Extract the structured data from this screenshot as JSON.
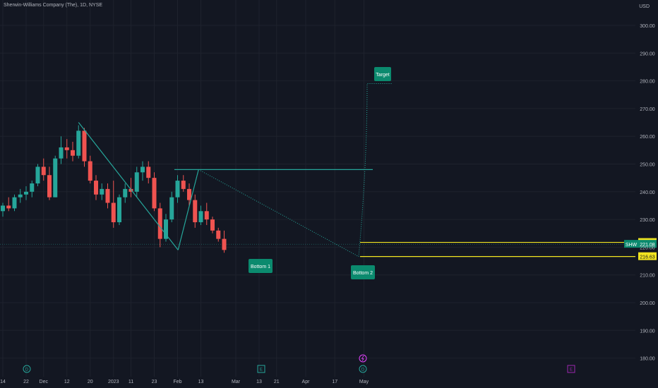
{
  "header": {
    "title": "Sherwin-Williams Company (The), 1D, NYSE",
    "currency": "USD"
  },
  "colors": {
    "background": "#131722",
    "up": "#26a69a",
    "down": "#ef5350",
    "axis_text": "#b2b5be",
    "grid": "#1e222d",
    "pattern_line": "#26a69a",
    "level_line": "#f2e520",
    "annotation_fill": "#0b8a6e",
    "annotation_text": "#ffffff",
    "dividend_marker": "#26a69a",
    "earnings_marker": "#9c27b0",
    "split_marker": "#e040fb"
  },
  "chart_data": {
    "type": "candlestick",
    "title": "Sherwin-Williams Company (The), 1D, NYSE",
    "ylabel": "USD",
    "ylim": [
      175,
      305
    ],
    "y_ticks": [
      180,
      190,
      200,
      210,
      220,
      230,
      240,
      250,
      260,
      270,
      280,
      290,
      300
    ],
    "y_tick_labels": [
      "180.00",
      "190.00",
      "200.00",
      "210.00",
      "220.00",
      "230.00",
      "240.00",
      "250.00",
      "260.00",
      "270.00",
      "280.00",
      "290.00",
      "300.00"
    ],
    "x_tick_labels": [
      "14",
      "22",
      "Dec",
      "12",
      "20",
      "2023",
      "11",
      "23",
      "Feb",
      "13",
      "Mar",
      "13",
      "21",
      "Apr",
      "17",
      "May"
    ],
    "x_tick_index": [
      0,
      4,
      7,
      11,
      15,
      19,
      22,
      26,
      30,
      34,
      40,
      44,
      47,
      52,
      57,
      62
    ],
    "candles": [
      [
        233,
        236,
        231,
        235
      ],
      [
        235,
        238,
        233,
        234
      ],
      [
        234,
        239,
        233,
        238
      ],
      [
        238,
        241,
        236,
        239
      ],
      [
        239,
        242,
        237,
        240
      ],
      [
        240,
        244,
        238,
        243
      ],
      [
        243,
        250,
        242,
        249
      ],
      [
        249,
        252,
        244,
        246
      ],
      [
        246,
        249,
        237,
        238
      ],
      [
        238,
        253,
        238,
        252
      ],
      [
        252,
        260,
        250,
        256
      ],
      [
        256,
        259,
        252,
        255
      ],
      [
        255,
        258,
        251,
        253
      ],
      [
        253,
        264,
        252,
        262
      ],
      [
        262,
        263,
        249,
        251
      ],
      [
        251,
        253,
        243,
        244
      ],
      [
        244,
        246,
        237,
        239
      ],
      [
        239,
        243,
        237,
        241
      ],
      [
        241,
        243,
        234,
        236
      ],
      [
        236,
        244,
        227,
        229
      ],
      [
        229,
        239,
        228,
        238
      ],
      [
        238,
        243,
        236,
        241
      ],
      [
        241,
        245,
        238,
        240
      ],
      [
        240,
        249,
        238,
        247
      ],
      [
        247,
        251,
        244,
        249
      ],
      [
        249,
        251,
        243,
        245
      ],
      [
        245,
        247,
        233,
        234
      ],
      [
        234,
        236,
        220,
        223
      ],
      [
        223,
        232,
        222,
        230
      ],
      [
        230,
        240,
        229,
        238
      ],
      [
        238,
        246,
        236,
        244
      ],
      [
        244,
        246,
        240,
        241
      ],
      [
        241,
        243,
        235,
        237
      ],
      [
        237,
        239,
        227,
        229
      ],
      [
        229,
        235,
        228,
        233
      ],
      [
        233,
        236,
        228,
        230
      ],
      [
        230,
        231,
        225,
        226
      ],
      [
        226,
        227,
        222,
        223
      ],
      [
        223,
        226,
        218,
        219
      ]
    ],
    "last_price": 221.08,
    "level_lines": [
      221.74,
      216.63
    ],
    "level_labels": [
      "221.74",
      "216.63"
    ],
    "current_label": "221.08",
    "symbol": "SHW",
    "annotations": [
      "Bottom 1",
      "Bottom 2",
      "Target"
    ],
    "event_markers": [
      "D",
      "E",
      "D",
      "E"
    ]
  }
}
